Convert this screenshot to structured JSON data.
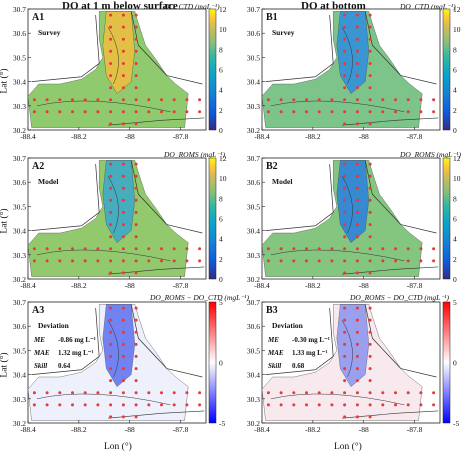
{
  "column_titles": [
    "DO at 1 m below surface",
    "DO at bottom"
  ],
  "colorbars": [
    {
      "title": "DO_CTD (mgL⁻¹)",
      "ticks": [
        "12",
        "10",
        "8",
        "6",
        "4",
        "2",
        "0"
      ]
    },
    {
      "title": "DO_CTD (mgL⁻¹)",
      "ticks": [
        "12",
        "10",
        "8",
        "6",
        "4",
        "2",
        "0"
      ]
    },
    {
      "title": "DO_ROMS (mgL⁻¹)",
      "ticks": [
        "12",
        "10",
        "8",
        "6",
        "4",
        "2",
        "0"
      ]
    },
    {
      "title": "DO_ROMS (mgL⁻¹)",
      "ticks": [
        "12",
        "10",
        "8",
        "6",
        "4",
        "2",
        "0"
      ]
    },
    {
      "title": "DO_ROMS − DO_CTD (mgL⁻¹)",
      "ticks": [
        "5",
        "0",
        "-5"
      ]
    },
    {
      "title": "DO_ROMS − DO_CTD (mgL⁻¹)",
      "ticks": [
        "5",
        "0",
        "-5"
      ]
    }
  ],
  "axes": {
    "ylabel": "Lat (°)",
    "xlabel": "Lon (°)",
    "yticks": [
      "30.7",
      "30.6",
      "30.5",
      "30.4",
      "30.3",
      "30.2"
    ],
    "xticks": [
      "-88.4",
      "-88.2",
      "-88",
      "-87.8"
    ]
  },
  "panels": [
    {
      "id": "A1",
      "label": "Survey",
      "stats": []
    },
    {
      "id": "B1",
      "label": "Survey",
      "stats": []
    },
    {
      "id": "A2",
      "label": "Model",
      "stats": []
    },
    {
      "id": "B2",
      "label": "Model",
      "stats": []
    },
    {
      "id": "A3",
      "label": "Deviation",
      "stats": [
        {
          "name": "ME",
          "value": "-0.86 mg L⁻¹"
        },
        {
          "name": "MAE",
          "value": "1.32 mg L⁻¹"
        },
        {
          "name": "Skill",
          "value": "0.64"
        }
      ]
    },
    {
      "id": "B3",
      "label": "Deviation",
      "stats": [
        {
          "name": "ME",
          "value": "-0.30 mg L⁻¹"
        },
        {
          "name": "MAE",
          "value": "1.33 mg L⁻¹"
        },
        {
          "name": "Skill",
          "value": "0.68"
        }
      ]
    }
  ],
  "chart_data": [
    {
      "type": "heatmap",
      "panel": "A1",
      "title": "DO at 1 m below surface",
      "xlim": [
        -88.4,
        -87.7
      ],
      "ylim": [
        30.2,
        30.7
      ],
      "colorbar_range": [
        0,
        12
      ]
    },
    {
      "type": "heatmap",
      "panel": "B1",
      "title": "DO at bottom",
      "xlim": [
        -88.4,
        -87.7
      ],
      "ylim": [
        30.2,
        30.7
      ],
      "colorbar_range": [
        0,
        12
      ]
    },
    {
      "type": "heatmap",
      "panel": "A2",
      "xlim": [
        -88.4,
        -87.7
      ],
      "ylim": [
        30.2,
        30.7
      ],
      "colorbar_range": [
        0,
        12
      ]
    },
    {
      "type": "heatmap",
      "panel": "B2",
      "xlim": [
        -88.4,
        -87.7
      ],
      "ylim": [
        30.2,
        30.7
      ],
      "colorbar_range": [
        0,
        12
      ]
    },
    {
      "type": "heatmap",
      "panel": "A3",
      "xlim": [
        -88.4,
        -87.7
      ],
      "ylim": [
        30.2,
        30.7
      ],
      "colorbar_range": [
        -5,
        5
      ],
      "ME": -0.86,
      "MAE": 1.32,
      "Skill": 0.64
    },
    {
      "type": "heatmap",
      "panel": "B3",
      "xlim": [
        -88.4,
        -87.7
      ],
      "ylim": [
        30.2,
        30.7
      ],
      "colorbar_range": [
        -5,
        5
      ],
      "ME": -0.3,
      "MAE": 1.33,
      "Skill": 0.68
    }
  ],
  "colors": {
    "station_dot": "#e8393a",
    "coast": "#333333"
  }
}
